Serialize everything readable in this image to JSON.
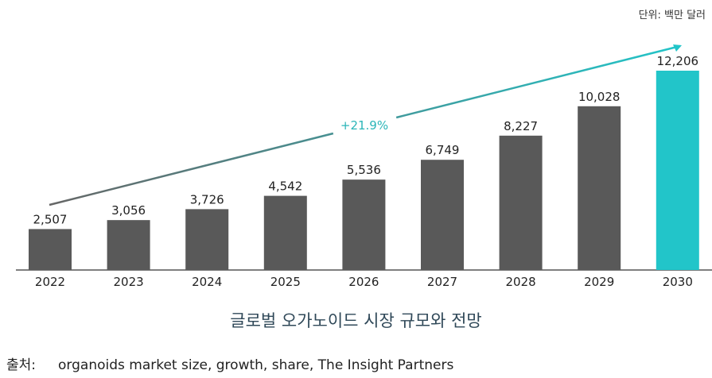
{
  "chart_data": {
    "type": "bar",
    "title": "글로벌 오가노이드 시장 규모와 전망",
    "unit": "단위: 백만 달러",
    "categories": [
      "2022",
      "2023",
      "2024",
      "2025",
      "2026",
      "2027",
      "2028",
      "2029",
      "2030"
    ],
    "values": [
      2507,
      3056,
      3726,
      4542,
      5536,
      6749,
      8227,
      10028,
      12206
    ],
    "value_labels": [
      "2,507",
      "3,056",
      "3,726",
      "4,542",
      "5,536",
      "6,749",
      "8,227",
      "10,028",
      "12,206"
    ],
    "growth_label": "+21.9%",
    "ylim": [
      0,
      12206
    ],
    "colors": {
      "bar": "#595959",
      "highlight": "#22c5c9",
      "arrow_start": "#666666",
      "arrow_end": "#22c5c9"
    }
  },
  "source": {
    "label": "출처:",
    "text": "organoids market size, growth, share, The Insight Partners"
  }
}
